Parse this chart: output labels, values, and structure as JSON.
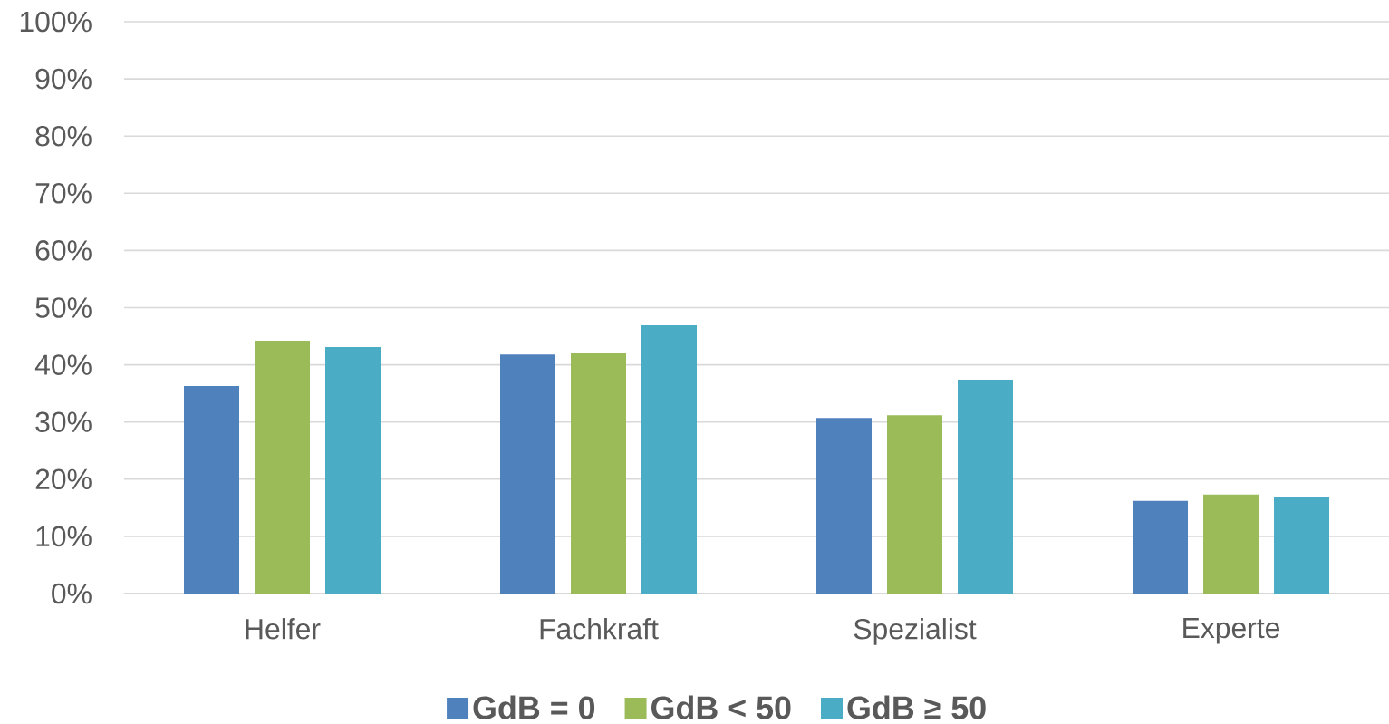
{
  "chart_data": {
    "type": "bar",
    "categories": [
      "Helfer",
      "Fachkraft",
      "Spezialist",
      "Experte"
    ],
    "series": [
      {
        "name": "GdB = 0",
        "color": "#4f81bd",
        "values": [
          36.3,
          41.8,
          30.7,
          16.2
        ]
      },
      {
        "name": "GdB < 50",
        "color": "#9bbb59",
        "values": [
          44.2,
          42.0,
          31.2,
          17.3
        ]
      },
      {
        "name": "GdB ≥ 50",
        "color": "#4bacc6",
        "values": [
          43.1,
          46.9,
          37.4,
          16.8
        ]
      }
    ],
    "ylim": [
      0,
      100
    ],
    "yticks": [
      {
        "value": 0,
        "label": "0%"
      },
      {
        "value": 10,
        "label": "10%"
      },
      {
        "value": 20,
        "label": "20%"
      },
      {
        "value": 30,
        "label": "30%"
      },
      {
        "value": 40,
        "label": "40%"
      },
      {
        "value": 50,
        "label": "50%"
      },
      {
        "value": 60,
        "label": "60%"
      },
      {
        "value": 70,
        "label": "70%"
      },
      {
        "value": 80,
        "label": "80%"
      },
      {
        "value": 90,
        "label": "90%"
      },
      {
        "value": 100,
        "label": "100%"
      }
    ],
    "grid": "y",
    "legend": "bottom"
  }
}
